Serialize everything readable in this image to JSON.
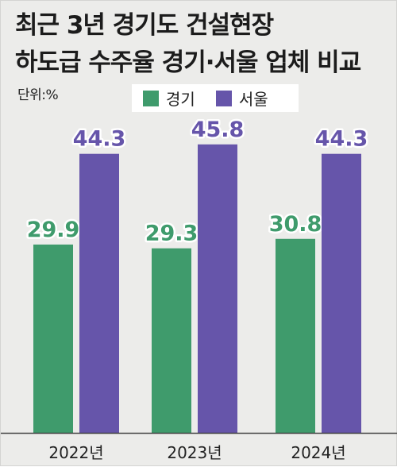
{
  "header": {
    "title_line1": "최근 3년 경기도 건설현장",
    "title_line2": "하도급 수주율 경기·서울 업체 비교",
    "unit": "단위:%"
  },
  "colors": {
    "gyeonggi": "#3f9b6c",
    "seoul": "#6655aa",
    "background": "#ececea"
  },
  "chart_data": {
    "type": "bar",
    "title": "최근 3년 경기도 건설현장 하도급 수주율 경기·서울 업체 비교",
    "ylabel": "단위:%",
    "categories": [
      "2022년",
      "2023년",
      "2024년"
    ],
    "series": [
      {
        "name": "경기",
        "values": [
          29.9,
          29.3,
          30.8
        ]
      },
      {
        "name": "서울",
        "values": [
          44.3,
          45.8,
          44.3
        ]
      }
    ],
    "value_labels": [
      [
        "29.9",
        "29.3",
        "30.8"
      ],
      [
        "44.3",
        "45.8",
        "44.3"
      ]
    ],
    "ylim": [
      0,
      50
    ],
    "legend": "top-center",
    "grid": false
  }
}
